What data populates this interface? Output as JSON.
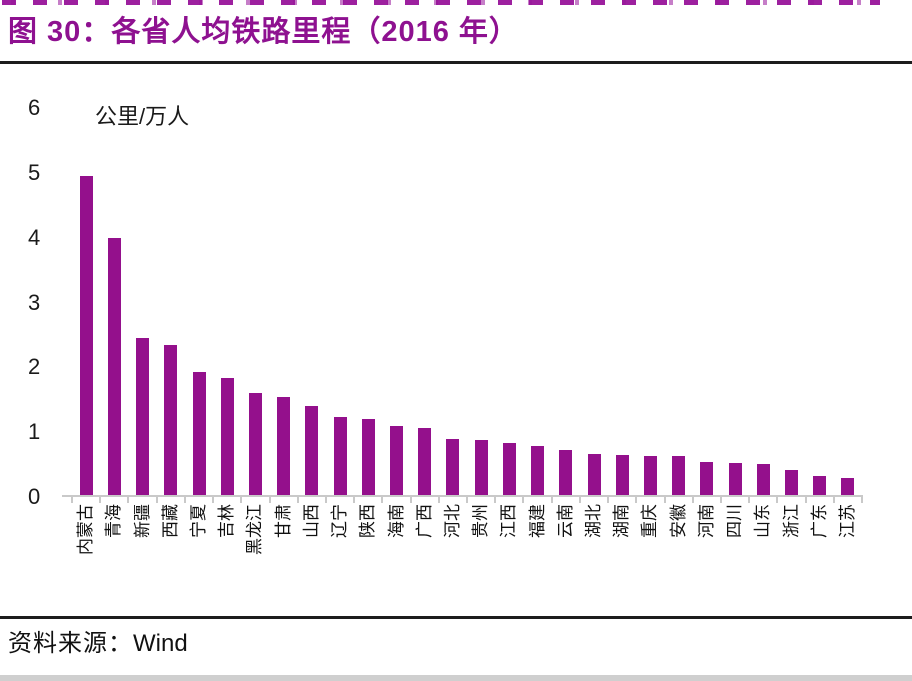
{
  "header": {
    "title": "图 30：各省人均铁路里程（2016 年）"
  },
  "chart_data": {
    "type": "bar",
    "title": "各省人均铁路里程（2016 年）",
    "unit_label": "公里/万人",
    "categories": [
      "内蒙古",
      "青海",
      "新疆",
      "西藏",
      "宁夏",
      "吉林",
      "黑龙江",
      "甘肃",
      "山西",
      "辽宁",
      "陕西",
      "海南",
      "广西",
      "河北",
      "贵州",
      "江西",
      "福建",
      "云南",
      "湖北",
      "湖南",
      "重庆",
      "安徽",
      "河南",
      "四川",
      "山东",
      "浙江",
      "广东",
      "江苏"
    ],
    "values": [
      4.95,
      4.0,
      2.45,
      2.35,
      1.93,
      1.84,
      1.61,
      1.54,
      1.4,
      1.24,
      1.2,
      1.09,
      1.06,
      0.9,
      0.88,
      0.83,
      0.78,
      0.72,
      0.67,
      0.65,
      0.64,
      0.64,
      0.54,
      0.53,
      0.51,
      0.41,
      0.33,
      0.3
    ],
    "ylim": [
      0,
      6
    ],
    "yticks": [
      0,
      1,
      2,
      3,
      4,
      5,
      6
    ],
    "grid": false,
    "legend": "none",
    "bar_color": "#94108C"
  },
  "colors": {
    "title": "#8E1190",
    "bar": "#94108C",
    "axis_line": "#C9C9C9",
    "rule": "#1C1C1C",
    "text": "#1A1A1A"
  },
  "footer": {
    "source_label": "资料来源：",
    "source_value": "Wind"
  }
}
